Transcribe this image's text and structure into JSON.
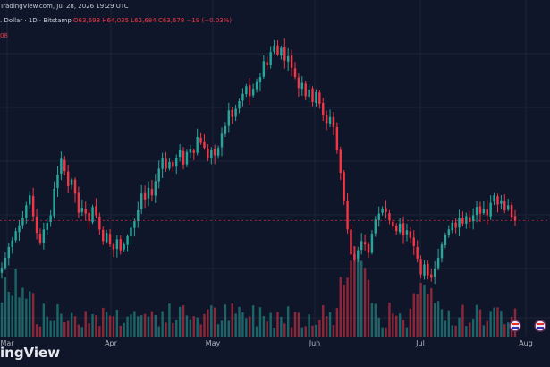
{
  "header": {
    "source_line": "TradingView.com, Jul 28, 2026 19:29 UTC",
    "symbol": ". Dollar · 1D · Bitstamp",
    "open": "O63,698",
    "high": "H64,035",
    "low": "L62,684",
    "close": "C63,678",
    "change": "−19 (−0.03%)",
    "extra_line": "08"
  },
  "logo": "ingView",
  "colors": {
    "up": "#26a69a",
    "down": "#f23645",
    "bg": "#0f1629",
    "grid": "#1c2438"
  },
  "chart_data": {
    "type": "candlestick",
    "x_ticks": [
      "Mar",
      "Apr",
      "May",
      "Jun",
      "Jul",
      "Aug"
    ],
    "legend": "none",
    "grid": true,
    "price_line": 63678,
    "candles_close": [
      58000,
      59200,
      60500,
      61300,
      62400,
      63100,
      64000,
      65500,
      66700,
      64200,
      62200,
      61000,
      62600,
      63400,
      64300,
      67500,
      69200,
      71100,
      69600,
      67800,
      68600,
      66900,
      64600,
      65200,
      64500,
      63600,
      65300,
      64300,
      62600,
      61200,
      62200,
      60800,
      60200,
      61400,
      60100,
      60800,
      61800,
      62800,
      63600,
      64900,
      66900,
      66200,
      67600,
      66700,
      68400,
      69900,
      71200,
      69900,
      70700,
      70100,
      71200,
      72100,
      70400,
      71900,
      72200,
      71800,
      73700,
      73000,
      72400,
      71200,
      72100,
      71500,
      72400,
      74100,
      75000,
      76900,
      76100,
      77100,
      78000,
      78900,
      79800,
      78600,
      79500,
      80300,
      80900,
      82800,
      82300,
      83900,
      84700,
      83600,
      84400,
      82900,
      83400,
      82000,
      80900,
      79600,
      80200,
      78600,
      79400,
      77900,
      79100,
      77700,
      76300,
      75400,
      76100,
      74900,
      72100,
      69400,
      66100,
      62600,
      59600,
      59000,
      60100,
      61200,
      60800,
      59800,
      62100,
      63800,
      64500,
      65100,
      64700,
      63700,
      63000,
      62400,
      63300,
      61900,
      62500,
      61600,
      60600,
      59100,
      57200,
      58400,
      57100,
      56800,
      57900,
      59200,
      60800,
      61900,
      62600,
      63400,
      62800,
      64000,
      63300,
      64200,
      63500,
      64300,
      65300,
      64500,
      65000,
      64300,
      65800,
      66700,
      65600,
      66100,
      64900,
      65500,
      64100,
      63678
    ]
  }
}
